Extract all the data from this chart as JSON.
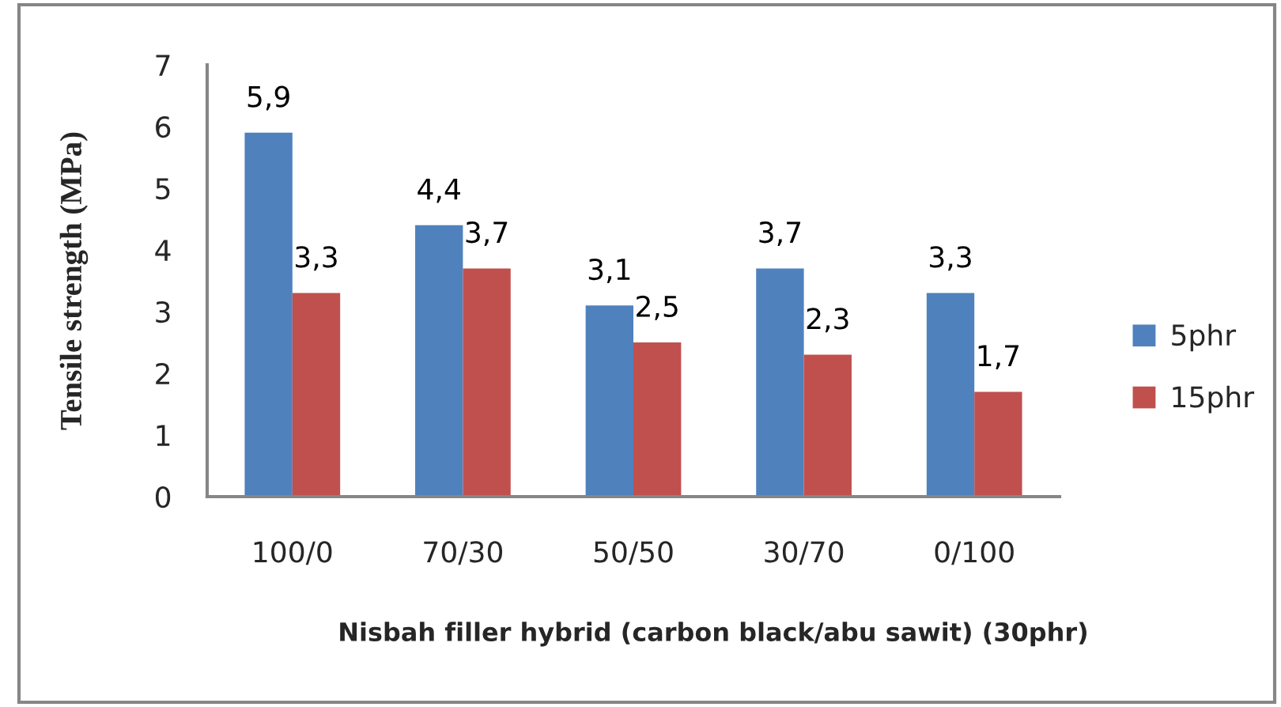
{
  "chart_data": {
    "type": "bar",
    "xlabel": "Nisbah filler hybrid (carbon black/abu sawit) (30phr)",
    "ylabel": "Tensile strength (MPa)",
    "categories": [
      "100/0",
      "70/30",
      "50/50",
      "30/70",
      "0/100"
    ],
    "series": [
      {
        "name": "5phr",
        "color": "#4f81bd",
        "values": [
          5.9,
          4.4,
          3.1,
          3.7,
          3.3
        ],
        "value_labels": [
          "5,9",
          "4,4",
          "3,1",
          "3,7",
          "3,3"
        ]
      },
      {
        "name": "15phr",
        "color": "#c0504d",
        "values": [
          3.3,
          3.7,
          2.5,
          2.3,
          1.7
        ],
        "value_labels": [
          "3,3",
          "3,7",
          "2,5",
          "2,3",
          "1,7"
        ]
      }
    ],
    "ylim": [
      0,
      7
    ],
    "yticks": [
      0,
      1,
      2,
      3,
      4,
      5,
      6,
      7
    ],
    "grid": false,
    "legend": "right"
  }
}
